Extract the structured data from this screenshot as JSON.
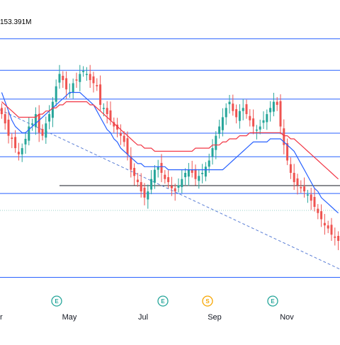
{
  "volume_label": "153.391M",
  "colors": {
    "up": "#26a69a",
    "down": "#ef5350",
    "sma_fast": "#2962ff",
    "sma_slow": "#f23645",
    "level_line": "#2962ff",
    "trend_line": "#5b7fd6",
    "support_line": "#131722",
    "earnings_marker": "#26a69a",
    "dividend_marker": "#f7a600"
  },
  "chart_data": {
    "type": "candlestick",
    "x_ticks": [
      "r",
      "May",
      "Jul",
      "Sep",
      "Nov"
    ],
    "price_range": [
      0,
      100
    ],
    "horizontal_levels": [
      96,
      84,
      73,
      60,
      51,
      37,
      5
    ],
    "support_level": 40,
    "series": {
      "closes": [
        66,
        63,
        59,
        58,
        55,
        53,
        55,
        58,
        62,
        63,
        66,
        60,
        59,
        63,
        66,
        70,
        75,
        79,
        77,
        74,
        73,
        76,
        77,
        79,
        80,
        79,
        77,
        76,
        75,
        69,
        68,
        66,
        64,
        62,
        61,
        59,
        57,
        53,
        48,
        46,
        44,
        41,
        39,
        41,
        45,
        48,
        49,
        47,
        45,
        44,
        42,
        41,
        43,
        45,
        47,
        48,
        47,
        45,
        46,
        47,
        49,
        51,
        55,
        59,
        62,
        65,
        68,
        70,
        67,
        65,
        67,
        68,
        66,
        64,
        62,
        61,
        62,
        64,
        66,
        68,
        70,
        69,
        62,
        56,
        51,
        47,
        44,
        43,
        42,
        41,
        40,
        38,
        36,
        34,
        32,
        30,
        29,
        27,
        26,
        25
      ]
    },
    "moving_averages": [
      {
        "values": [
          73,
          70,
          67,
          64,
          62,
          61,
          60,
          60,
          61,
          62,
          63,
          64,
          65,
          66,
          67,
          68,
          69,
          70,
          71,
          72,
          73,
          73,
          73,
          73,
          72,
          71,
          70,
          69,
          67,
          65,
          63,
          61,
          60,
          58,
          57,
          55,
          54,
          53,
          52,
          51,
          50,
          50,
          49,
          49,
          49,
          49,
          49,
          49,
          49,
          48,
          48,
          48,
          48,
          48,
          48,
          48,
          48,
          48,
          48,
          48,
          48,
          48,
          48,
          48,
          48,
          48,
          49,
          50,
          51,
          52,
          53,
          54,
          55,
          56,
          57,
          57,
          57,
          57,
          57,
          58,
          58,
          58,
          58,
          57,
          56,
          55,
          54,
          52,
          50,
          48,
          46,
          44,
          42,
          41,
          39,
          38,
          37,
          36,
          35,
          34
        ]
      },
      {
        "values": [
          70,
          69,
          68,
          67,
          66,
          65,
          65,
          65,
          65,
          65,
          65,
          66,
          66,
          67,
          67,
          68,
          68,
          69,
          69,
          70,
          70,
          70,
          70,
          70,
          70,
          70,
          69,
          69,
          68,
          67,
          66,
          65,
          64,
          63,
          62,
          61,
          60,
          59,
          58,
          57,
          56,
          56,
          55,
          55,
          55,
          54,
          54,
          54,
          54,
          54,
          54,
          54,
          54,
          54,
          54,
          54,
          54,
          55,
          55,
          55,
          55,
          55,
          56,
          56,
          56,
          57,
          57,
          58,
          58,
          58,
          59,
          59,
          59,
          60,
          60,
          60,
          60,
          60,
          60,
          60,
          60,
          60,
          60,
          59,
          59,
          58,
          58,
          57,
          56,
          55,
          54,
          53,
          52,
          51,
          50,
          49,
          48,
          47,
          46,
          45
        ]
      }
    ],
    "event_markers": [
      {
        "label": "E",
        "month_index": 1
      },
      {
        "label": "E",
        "month_index": 2
      },
      {
        "label": "S",
        "month_index": 3
      },
      {
        "label": "E",
        "month_index": 4
      }
    ]
  }
}
